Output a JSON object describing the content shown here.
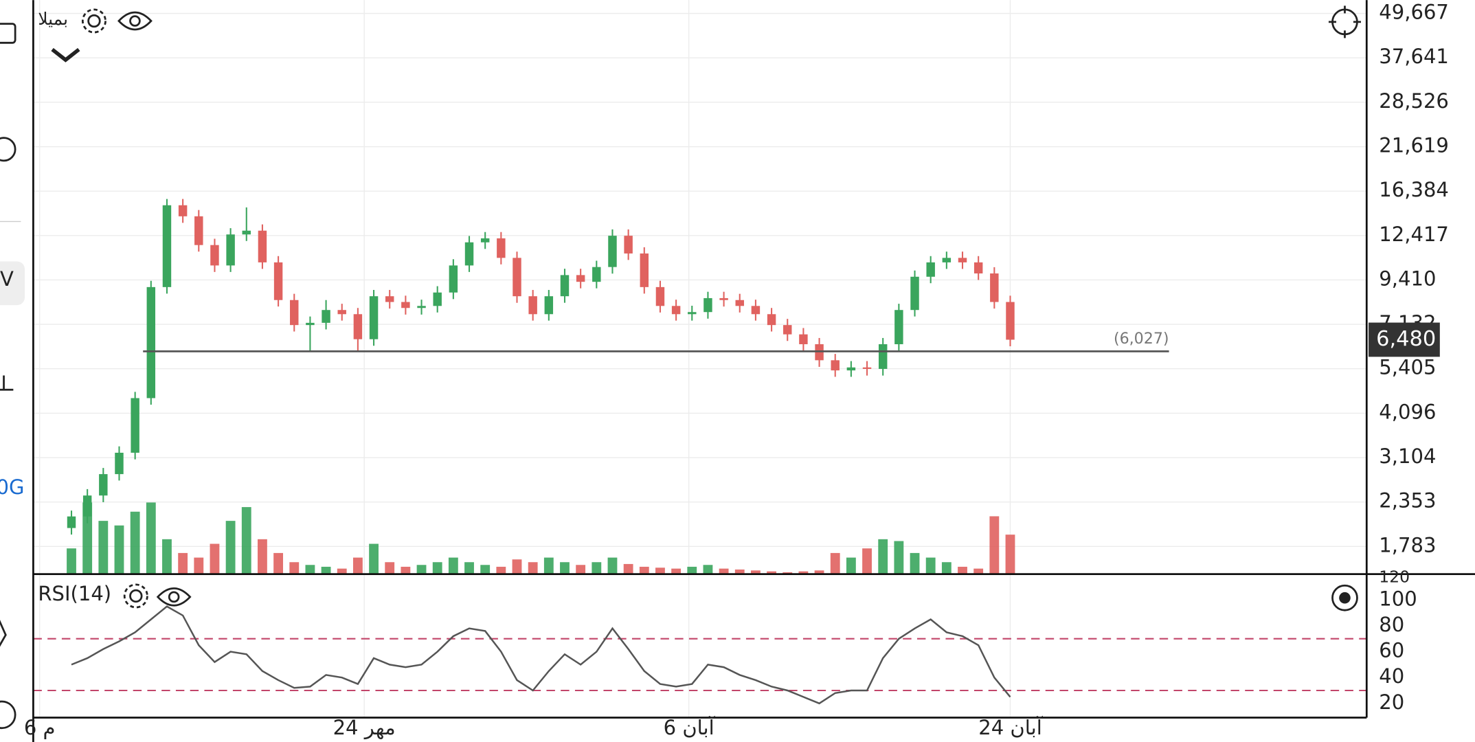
{
  "sidebar_labels": [
    "V",
    "0G"
  ],
  "chart_data": [
    {
      "type": "candlestick",
      "title": "بمیلا",
      "log_scale": true,
      "grid": true,
      "up_color": "#3aa55d",
      "down_color": "#e0625f",
      "xlim": [
        -2.4,
        81.4
      ],
      "xticks": [
        {
          "value": -2,
          "label": "6 م"
        },
        {
          "value": 18.4,
          "label": "24 مهر"
        },
        {
          "value": 38.8,
          "label": "6 آبان"
        },
        {
          "value": 59,
          "label": "24 آبان"
        }
      ],
      "ylim": [
        1500,
        54000
      ],
      "yticks": [
        {
          "value": 49667,
          "label": "49,667"
        },
        {
          "value": 37641,
          "label": "37,641"
        },
        {
          "value": 28526,
          "label": "28,526"
        },
        {
          "value": 21619,
          "label": "21,619"
        },
        {
          "value": 16384,
          "label": "16,384"
        },
        {
          "value": 12417,
          "label": "12,417"
        },
        {
          "value": 9410,
          "label": "9,410"
        },
        {
          "value": 7132,
          "label": "7,132"
        },
        {
          "value": 5405,
          "label": "5,405"
        },
        {
          "value": 4096,
          "label": "4,096"
        },
        {
          "value": 3104,
          "label": "3,104"
        },
        {
          "value": 2353,
          "label": "2,353"
        },
        {
          "value": 1783,
          "label": "1,783"
        }
      ],
      "hline": {
        "value": 6027,
        "label": "(6,027)"
      },
      "last_price": {
        "value": 6480,
        "label": "6,480"
      },
      "open": [
        2000,
        2150,
        2450,
        2800,
        3200,
        4500,
        9000,
        15000,
        14000,
        11700,
        10300,
        12500,
        12800,
        10500,
        8300,
        7100,
        7200,
        7800,
        7600,
        6500,
        8500,
        8200,
        7900,
        8000,
        8700,
        10300,
        11900,
        12200,
        10800,
        8500,
        7600,
        8500,
        9700,
        9300,
        10200,
        12400,
        11100,
        9000,
        8000,
        7600,
        7700,
        8400,
        8300,
        8000,
        7600,
        7100,
        6700,
        6300,
        5700,
        5350,
        5450,
        5400,
        6300,
        7800,
        9600,
        10500,
        10800,
        10500,
        9800,
        8200
      ],
      "high": [
        2230,
        2550,
        2910,
        3330,
        4680,
        9360,
        15600,
        15600,
        14560,
        12170,
        13000,
        14800,
        13310,
        10920,
        8630,
        7490,
        8300,
        8110,
        7900,
        8840,
        8840,
        8530,
        8320,
        9050,
        10710,
        12380,
        12690,
        12690,
        11230,
        8840,
        8840,
        10090,
        10090,
        10610,
        12900,
        12900,
        11540,
        9360,
        8320,
        8010,
        8740,
        8740,
        8630,
        8320,
        7900,
        7380,
        6970,
        6550,
        5930,
        5670,
        5670,
        6550,
        8110,
        9980,
        10920,
        11230,
        11230,
        10920,
        10190,
        8530
      ],
      "low": [
        1920,
        2060,
        2350,
        2690,
        3070,
        4320,
        8640,
        13440,
        11230,
        9890,
        9890,
        12000,
        10080,
        7970,
        6820,
        6050,
        6910,
        7300,
        6030,
        6240,
        7870,
        7580,
        7580,
        7680,
        8350,
        9890,
        11420,
        10370,
        8160,
        7300,
        7300,
        8160,
        8930,
        8930,
        9790,
        10660,
        8640,
        7680,
        7300,
        7300,
        7390,
        7970,
        7680,
        7300,
        6820,
        6430,
        6050,
        5470,
        5140,
        5140,
        5180,
        5180,
        6050,
        7490,
        9220,
        10080,
        10080,
        9410,
        7870,
        6220
      ],
      "close": [
        2150,
        2450,
        2800,
        3200,
        4500,
        9000,
        15000,
        14000,
        11700,
        10300,
        12500,
        12800,
        10500,
        8300,
        7100,
        7200,
        7800,
        7600,
        6500,
        8500,
        8200,
        7900,
        8000,
        8700,
        10300,
        11900,
        12200,
        10800,
        8500,
        7600,
        8500,
        9700,
        9300,
        10200,
        12400,
        11100,
        9000,
        8000,
        7600,
        7700,
        8400,
        8300,
        8000,
        7600,
        7100,
        6700,
        6300,
        5700,
        5350,
        5450,
        5400,
        6300,
        7800,
        9600,
        10500,
        10800,
        10500,
        9800,
        8200,
        6480
      ],
      "volume": {
        "ylim": [
          120,
          1000
        ],
        "yticks": [
          120
        ],
        "values": [
          400,
          900,
          700,
          650,
          800,
          900,
          500,
          350,
          300,
          450,
          700,
          850,
          500,
          350,
          250,
          220,
          200,
          180,
          300,
          450,
          250,
          200,
          220,
          250,
          300,
          250,
          220,
          200,
          280,
          250,
          300,
          250,
          220,
          250,
          300,
          230,
          200,
          190,
          180,
          200,
          220,
          180,
          170,
          160,
          150,
          140,
          150,
          160,
          350,
          300,
          400,
          500,
          480,
          350,
          300,
          250,
          200,
          180,
          750,
          550
        ]
      }
    },
    {
      "type": "line",
      "title": "RSI(14)",
      "color": "#555555",
      "level_color": "#c2456a",
      "levels": [
        70,
        30
      ],
      "ylim": [
        9,
        120
      ],
      "yticks": [
        100,
        80,
        60,
        40,
        20
      ],
      "values": [
        50,
        55,
        62,
        68,
        75,
        85,
        95,
        88,
        65,
        52,
        60,
        58,
        45,
        38,
        32,
        33,
        42,
        40,
        35,
        55,
        50,
        48,
        50,
        60,
        72,
        78,
        76,
        60,
        38,
        30,
        45,
        58,
        50,
        60,
        78,
        62,
        45,
        35,
        33,
        35,
        50,
        48,
        42,
        38,
        33,
        30,
        25,
        20,
        28,
        30,
        30,
        55,
        70,
        78,
        85,
        75,
        72,
        65,
        40,
        25
      ]
    }
  ]
}
